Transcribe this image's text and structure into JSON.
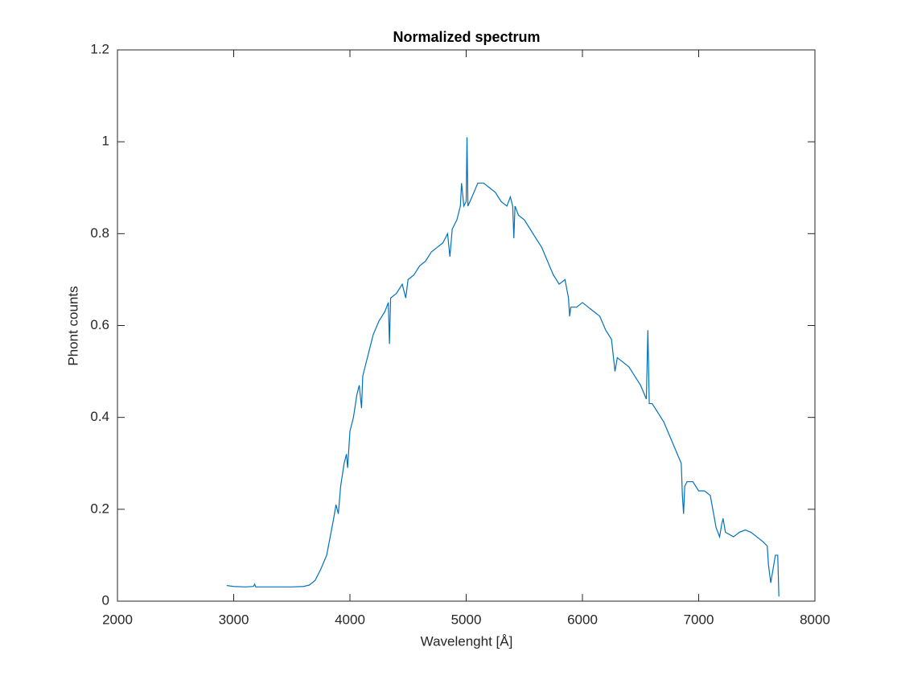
{
  "chart_data": {
    "type": "line",
    "title": "Normalized spectrum",
    "x_label": "Wavelenght [Å]",
    "y_label": "Phont counts",
    "xlim": [
      2000,
      8000
    ],
    "ylim": [
      0,
      1.2
    ],
    "xticks": [
      2000,
      3000,
      4000,
      5000,
      6000,
      7000,
      8000
    ],
    "yticks": [
      0,
      0.2,
      0.4,
      0.6,
      0.8,
      1,
      1.2
    ],
    "grid": false,
    "series": [
      {
        "color": "#0072bd",
        "x": [
          2940,
          3000,
          3100,
          3170,
          3180,
          3190,
          3300,
          3400,
          3500,
          3600,
          3650,
          3700,
          3750,
          3800,
          3830,
          3860,
          3880,
          3900,
          3920,
          3950,
          3970,
          3980,
          4000,
          4030,
          4060,
          4080,
          4100,
          4110,
          4150,
          4200,
          4250,
          4300,
          4330,
          4340,
          4350,
          4400,
          4450,
          4480,
          4500,
          4550,
          4600,
          4650,
          4700,
          4750,
          4800,
          4840,
          4860,
          4880,
          4920,
          4950,
          4960,
          4980,
          5000,
          5007,
          5015,
          5050,
          5100,
          5150,
          5200,
          5250,
          5300,
          5350,
          5380,
          5400,
          5410,
          5420,
          5450,
          5500,
          5550,
          5600,
          5650,
          5700,
          5750,
          5800,
          5850,
          5880,
          5890,
          5900,
          5950,
          6000,
          6050,
          6100,
          6150,
          6200,
          6250,
          6280,
          6300,
          6350,
          6400,
          6450,
          6500,
          6550,
          6563,
          6575,
          6600,
          6650,
          6700,
          6750,
          6800,
          6850,
          6860,
          6870,
          6880,
          6900,
          6950,
          7000,
          7050,
          7100,
          7150,
          7180,
          7200,
          7210,
          7230,
          7300,
          7350,
          7400,
          7450,
          7500,
          7550,
          7590,
          7600,
          7620,
          7640,
          7660,
          7680,
          7690
        ],
        "values": [
          0.034,
          0.032,
          0.031,
          0.032,
          0.037,
          0.031,
          0.031,
          0.031,
          0.031,
          0.032,
          0.035,
          0.045,
          0.07,
          0.1,
          0.14,
          0.18,
          0.21,
          0.19,
          0.25,
          0.3,
          0.32,
          0.29,
          0.37,
          0.4,
          0.45,
          0.47,
          0.42,
          0.49,
          0.53,
          0.58,
          0.61,
          0.63,
          0.65,
          0.56,
          0.66,
          0.67,
          0.69,
          0.66,
          0.7,
          0.71,
          0.73,
          0.74,
          0.76,
          0.77,
          0.78,
          0.8,
          0.75,
          0.81,
          0.83,
          0.86,
          0.91,
          0.86,
          0.87,
          1.01,
          0.86,
          0.88,
          0.91,
          0.91,
          0.9,
          0.89,
          0.87,
          0.86,
          0.88,
          0.86,
          0.79,
          0.86,
          0.84,
          0.83,
          0.81,
          0.79,
          0.77,
          0.74,
          0.71,
          0.69,
          0.7,
          0.66,
          0.62,
          0.64,
          0.64,
          0.65,
          0.64,
          0.63,
          0.62,
          0.59,
          0.57,
          0.5,
          0.53,
          0.52,
          0.51,
          0.49,
          0.47,
          0.44,
          0.59,
          0.43,
          0.43,
          0.41,
          0.39,
          0.36,
          0.33,
          0.3,
          0.23,
          0.19,
          0.25,
          0.26,
          0.26,
          0.24,
          0.24,
          0.23,
          0.16,
          0.14,
          0.17,
          0.18,
          0.15,
          0.14,
          0.15,
          0.155,
          0.15,
          0.14,
          0.13,
          0.12,
          0.08,
          0.04,
          0.07,
          0.1,
          0.1,
          0.01
        ]
      }
    ]
  }
}
